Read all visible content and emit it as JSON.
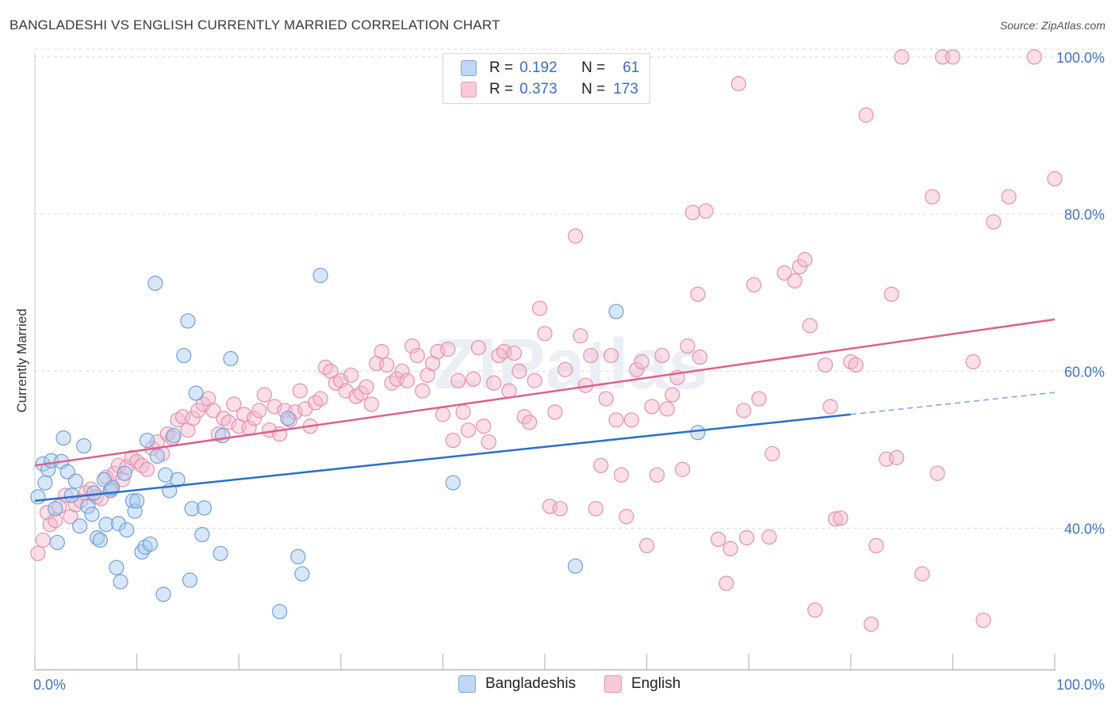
{
  "title": "BANGLADESHI VS ENGLISH CURRENTLY MARRIED CORRELATION CHART",
  "source": "Source: ZipAtlas.com",
  "watermark": "ZIPatlas",
  "legend": {
    "rows": [
      {
        "r_label": "R =",
        "r_value": "0.192",
        "n_label": "N =",
        "n_value": "61",
        "color": "#a9c9ef"
      },
      {
        "r_label": "R =",
        "r_value": "0.373",
        "n_label": "N =",
        "n_value": "173",
        "color": "#f5b8cc"
      }
    ],
    "bottom": [
      {
        "label": "Bangladeshis",
        "color": "#a9c9ef"
      },
      {
        "label": "English",
        "color": "#f5b8cc"
      }
    ]
  },
  "chart_data": {
    "type": "scatter",
    "title": "BANGLADESHI VS ENGLISH CURRENTLY MARRIED CORRELATION CHART",
    "xlabel": "",
    "ylabel": "Currently Married",
    "xlim": [
      0,
      100
    ],
    "ylim": [
      22,
      101
    ],
    "x_tick_labels": [
      "0.0%",
      "100.0%"
    ],
    "y_ticks": [
      40,
      60,
      80,
      100
    ],
    "y_tick_labels": [
      "40.0%",
      "60.0%",
      "80.0%",
      "100.0%"
    ],
    "grid": true,
    "legend_position": "top-center",
    "series": [
      {
        "name": "Bangladeshis",
        "color": "#a9c9ef",
        "stroke": "#6fa0db",
        "line_color": "#2a6fcb",
        "trend": {
          "x0": 0,
          "y0": 43.5,
          "x1": 80,
          "y1": 54.5,
          "dash_to": 100,
          "dash_y": 57.3
        },
        "points": [
          [
            0.3,
            44.0
          ],
          [
            0.8,
            48.2
          ],
          [
            1.0,
            45.8
          ],
          [
            1.3,
            47.5
          ],
          [
            1.6,
            48.6
          ],
          [
            2.0,
            42.5
          ],
          [
            2.2,
            38.2
          ],
          [
            2.6,
            48.5
          ],
          [
            2.8,
            51.5
          ],
          [
            3.2,
            47.2
          ],
          [
            3.6,
            44.2
          ],
          [
            4.0,
            46.0
          ],
          [
            4.4,
            40.3
          ],
          [
            4.8,
            50.5
          ],
          [
            5.2,
            42.8
          ],
          [
            5.6,
            41.8
          ],
          [
            5.8,
            44.5
          ],
          [
            6.1,
            38.8
          ],
          [
            6.4,
            38.5
          ],
          [
            6.8,
            46.2
          ],
          [
            7.0,
            40.5
          ],
          [
            7.4,
            44.8
          ],
          [
            7.6,
            45.2
          ],
          [
            8.0,
            35.0
          ],
          [
            8.2,
            40.6
          ],
          [
            8.4,
            33.2
          ],
          [
            8.8,
            47.0
          ],
          [
            9.0,
            39.8
          ],
          [
            9.6,
            43.5
          ],
          [
            9.8,
            42.2
          ],
          [
            10.0,
            43.5
          ],
          [
            10.5,
            37.0
          ],
          [
            10.8,
            37.6
          ],
          [
            11.0,
            51.2
          ],
          [
            11.3,
            38.0
          ],
          [
            11.8,
            71.2
          ],
          [
            12.0,
            49.2
          ],
          [
            12.6,
            31.6
          ],
          [
            12.8,
            46.8
          ],
          [
            13.2,
            44.8
          ],
          [
            13.6,
            51.8
          ],
          [
            14.0,
            46.2
          ],
          [
            14.6,
            62.0
          ],
          [
            15.0,
            66.4
          ],
          [
            15.2,
            33.4
          ],
          [
            15.4,
            42.5
          ],
          [
            15.8,
            57.2
          ],
          [
            16.4,
            39.2
          ],
          [
            16.6,
            42.6
          ],
          [
            18.2,
            36.8
          ],
          [
            18.4,
            51.8
          ],
          [
            19.2,
            61.6
          ],
          [
            24.0,
            29.4
          ],
          [
            24.8,
            54.0
          ],
          [
            25.8,
            36.4
          ],
          [
            26.2,
            34.2
          ],
          [
            28.0,
            72.2
          ],
          [
            41.0,
            45.8
          ],
          [
            53.0,
            35.2
          ],
          [
            57.0,
            67.6
          ],
          [
            65.0,
            52.2
          ]
        ]
      },
      {
        "name": "English",
        "color": "#f5b8cc",
        "stroke": "#e690ad",
        "line_color": "#e0608a",
        "trend": {
          "x0": 0,
          "y0": 48.0,
          "x1": 100,
          "y1": 66.6
        },
        "points": [
          [
            0.3,
            36.8
          ],
          [
            0.8,
            38.5
          ],
          [
            1.2,
            42.0
          ],
          [
            1.5,
            40.5
          ],
          [
            2.0,
            41.0
          ],
          [
            2.4,
            42.8
          ],
          [
            3.0,
            44.2
          ],
          [
            3.5,
            41.5
          ],
          [
            4.0,
            43.0
          ],
          [
            4.5,
            43.5
          ],
          [
            5.0,
            44.5
          ],
          [
            5.5,
            45.0
          ],
          [
            6.0,
            44.0
          ],
          [
            6.5,
            43.8
          ],
          [
            7.0,
            46.5
          ],
          [
            7.5,
            45.0
          ],
          [
            7.8,
            47.0
          ],
          [
            8.2,
            48.0
          ],
          [
            8.6,
            46.2
          ],
          [
            9.0,
            47.8
          ],
          [
            9.5,
            49.0
          ],
          [
            10.0,
            48.5
          ],
          [
            10.5,
            48.0
          ],
          [
            11.0,
            47.5
          ],
          [
            11.5,
            50.2
          ],
          [
            12.0,
            51.0
          ],
          [
            12.5,
            49.5
          ],
          [
            13.0,
            52.0
          ],
          [
            13.5,
            51.5
          ],
          [
            14.0,
            53.8
          ],
          [
            14.5,
            54.2
          ],
          [
            15.0,
            52.5
          ],
          [
            15.5,
            54.0
          ],
          [
            16.0,
            55.0
          ],
          [
            16.5,
            55.8
          ],
          [
            17.0,
            56.5
          ],
          [
            17.5,
            55.0
          ],
          [
            18.0,
            52.0
          ],
          [
            18.5,
            54.0
          ],
          [
            19.0,
            53.5
          ],
          [
            19.5,
            55.8
          ],
          [
            20.0,
            53.0
          ],
          [
            20.5,
            54.5
          ],
          [
            21.0,
            52.8
          ],
          [
            21.5,
            54.0
          ],
          [
            22.0,
            55.0
          ],
          [
            22.5,
            57.0
          ],
          [
            23.0,
            52.5
          ],
          [
            23.5,
            55.5
          ],
          [
            24.0,
            52.0
          ],
          [
            24.5,
            55.0
          ],
          [
            25.0,
            53.8
          ],
          [
            25.5,
            54.8
          ],
          [
            26.0,
            57.5
          ],
          [
            26.5,
            55.2
          ],
          [
            27.0,
            53.0
          ],
          [
            27.5,
            56.0
          ],
          [
            28.0,
            56.5
          ],
          [
            28.5,
            60.5
          ],
          [
            29.0,
            60.0
          ],
          [
            29.5,
            58.5
          ],
          [
            30.0,
            58.8
          ],
          [
            30.5,
            57.5
          ],
          [
            31.0,
            59.5
          ],
          [
            31.5,
            56.8
          ],
          [
            32.0,
            57.2
          ],
          [
            32.5,
            58.0
          ],
          [
            33.0,
            55.8
          ],
          [
            33.5,
            61.0
          ],
          [
            34.0,
            62.5
          ],
          [
            34.5,
            60.8
          ],
          [
            35.0,
            58.5
          ],
          [
            35.5,
            59.0
          ],
          [
            36.0,
            60.0
          ],
          [
            36.5,
            58.8
          ],
          [
            37.0,
            63.2
          ],
          [
            37.5,
            62.0
          ],
          [
            38.0,
            57.5
          ],
          [
            38.5,
            59.5
          ],
          [
            39.0,
            61.0
          ],
          [
            39.5,
            62.5
          ],
          [
            40.0,
            54.5
          ],
          [
            40.5,
            62.8
          ],
          [
            41.0,
            51.2
          ],
          [
            41.5,
            58.8
          ],
          [
            42.0,
            54.8
          ],
          [
            42.5,
            52.5
          ],
          [
            43.0,
            59.0
          ],
          [
            43.5,
            63.0
          ],
          [
            44.0,
            53.0
          ],
          [
            44.5,
            51.0
          ],
          [
            45.0,
            58.5
          ],
          [
            45.5,
            62.0
          ],
          [
            46.0,
            62.5
          ],
          [
            46.5,
            57.5
          ],
          [
            47.0,
            62.3
          ],
          [
            47.5,
            60.0
          ],
          [
            48.0,
            54.2
          ],
          [
            48.5,
            53.5
          ],
          [
            49.0,
            58.8
          ],
          [
            49.5,
            68.0
          ],
          [
            50.0,
            64.8
          ],
          [
            50.5,
            42.8
          ],
          [
            51.0,
            54.8
          ],
          [
            51.5,
            42.5
          ],
          [
            52.0,
            60.2
          ],
          [
            53.0,
            77.2
          ],
          [
            53.5,
            64.5
          ],
          [
            54.0,
            58.2
          ],
          [
            54.5,
            62.0
          ],
          [
            55.0,
            42.5
          ],
          [
            55.5,
            48.0
          ],
          [
            56.0,
            56.5
          ],
          [
            56.5,
            62.0
          ],
          [
            57.0,
            53.8
          ],
          [
            57.5,
            46.8
          ],
          [
            58.0,
            41.5
          ],
          [
            58.5,
            53.8
          ],
          [
            59.0,
            60.2
          ],
          [
            59.5,
            61.2
          ],
          [
            60.0,
            37.8
          ],
          [
            60.5,
            55.5
          ],
          [
            61.0,
            46.8
          ],
          [
            61.5,
            62.0
          ],
          [
            62.0,
            55.2
          ],
          [
            62.5,
            57.0
          ],
          [
            63.0,
            59.2
          ],
          [
            63.5,
            47.5
          ],
          [
            64.0,
            63.2
          ],
          [
            64.5,
            80.2
          ],
          [
            65.0,
            69.8
          ],
          [
            65.2,
            61.8
          ],
          [
            65.8,
            80.4
          ],
          [
            67.0,
            38.6
          ],
          [
            67.8,
            33.0
          ],
          [
            68.2,
            37.4
          ],
          [
            69.0,
            96.6
          ],
          [
            69.5,
            55.0
          ],
          [
            69.8,
            38.8
          ],
          [
            70.5,
            71.0
          ],
          [
            71.0,
            56.5
          ],
          [
            72.0,
            38.9
          ],
          [
            72.3,
            49.5
          ],
          [
            73.5,
            72.5
          ],
          [
            74.5,
            71.5
          ],
          [
            75.0,
            73.3
          ],
          [
            75.5,
            74.2
          ],
          [
            76.0,
            65.8
          ],
          [
            76.5,
            29.6
          ],
          [
            77.5,
            60.8
          ],
          [
            78.0,
            55.5
          ],
          [
            78.5,
            41.2
          ],
          [
            79.0,
            41.3
          ],
          [
            80.0,
            61.2
          ],
          [
            80.5,
            60.8
          ],
          [
            81.5,
            92.6
          ],
          [
            82.0,
            27.8
          ],
          [
            82.5,
            37.8
          ],
          [
            83.5,
            48.8
          ],
          [
            84.0,
            69.8
          ],
          [
            84.5,
            49.0
          ],
          [
            85.0,
            100.0
          ],
          [
            87.0,
            34.2
          ],
          [
            88.0,
            82.2
          ],
          [
            88.5,
            47.0
          ],
          [
            89.0,
            100.0
          ],
          [
            90.0,
            100.0
          ],
          [
            92.0,
            61.2
          ],
          [
            93.0,
            28.3
          ],
          [
            94.0,
            79.0
          ],
          [
            95.5,
            82.2
          ],
          [
            98.0,
            100.0
          ],
          [
            100.0,
            84.5
          ]
        ]
      }
    ]
  }
}
